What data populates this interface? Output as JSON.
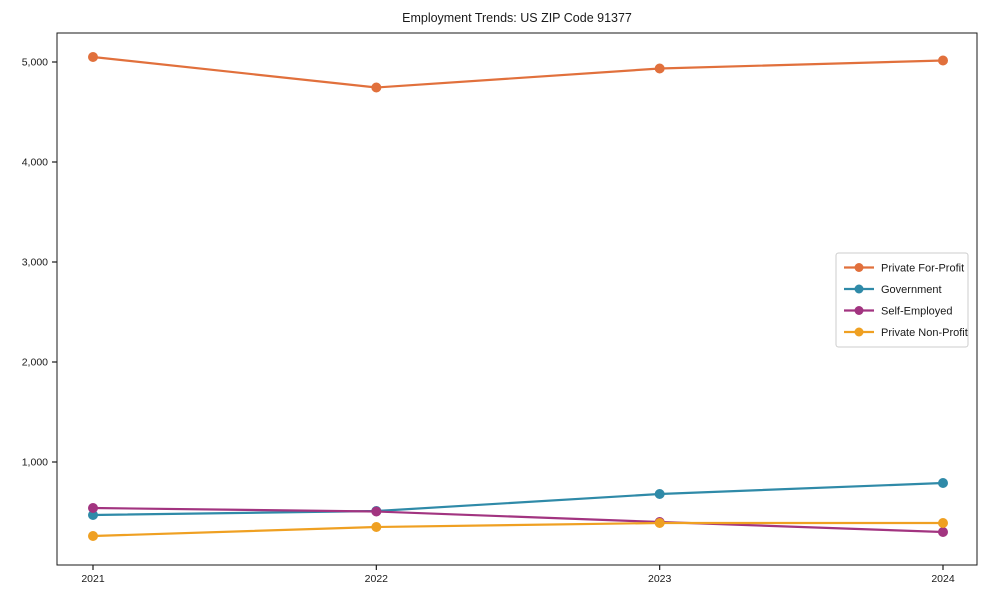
{
  "title": "Employment Trends: US ZIP Code 91377",
  "chart_data": {
    "type": "line",
    "title": "Employment Trends: US ZIP Code 91377",
    "xlabel": "",
    "ylabel": "",
    "x": [
      2021,
      2022,
      2023,
      2024
    ],
    "xtick_labels": [
      "2021",
      "2022",
      "2023",
      "2024"
    ],
    "yticks": [
      1000,
      2000,
      3000,
      4000,
      5000
    ],
    "ytick_labels": [
      "1,000",
      "2,000",
      "3,000",
      "4,000",
      "5,000"
    ],
    "ylim": [
      -30,
      5290
    ],
    "grid": false,
    "legend_position": "center-right",
    "series": [
      {
        "name": "Private For-Profit",
        "color": "#e1703c",
        "values": [
          5050,
          4745,
          4935,
          5015
        ]
      },
      {
        "name": "Government",
        "color": "#2f8aa8",
        "values": [
          470,
          510,
          680,
          790
        ]
      },
      {
        "name": "Self-Employed",
        "color": "#a23480",
        "values": [
          540,
          505,
          400,
          300
        ]
      },
      {
        "name": "Private Non-Profit",
        "color": "#efa022",
        "values": [
          260,
          350,
          390,
          390
        ]
      }
    ],
    "colors": {
      "axis": "#1a1a1a",
      "legend_border": "#cccccc",
      "background": "#ffffff"
    }
  }
}
